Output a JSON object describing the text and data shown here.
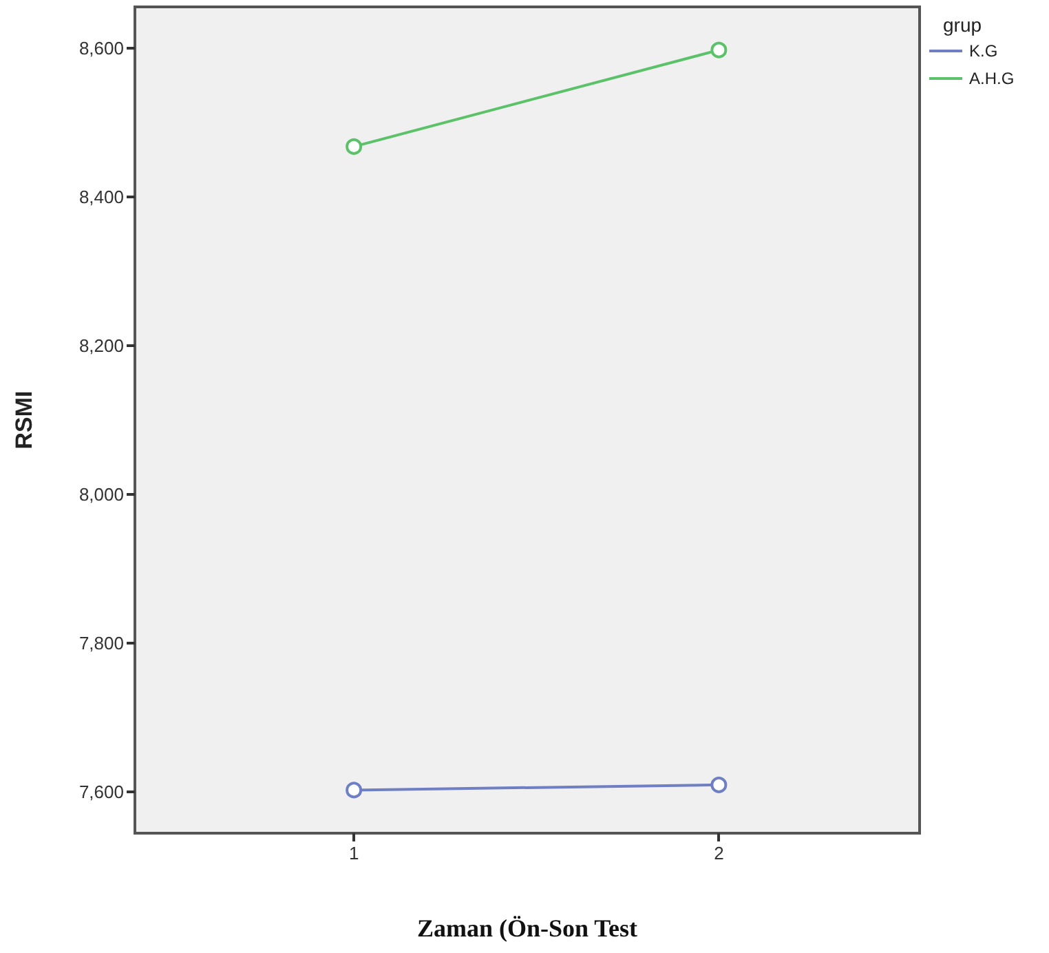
{
  "chart_data": {
    "type": "line",
    "xlabel": "Zaman (Ön-Son Test",
    "ylabel": "RSMI",
    "legend_title": "grup",
    "x": [
      1,
      2
    ],
    "series": [
      {
        "name": "K.G",
        "color": "#6e7fc4",
        "values": [
          7602,
          7609
        ]
      },
      {
        "name": "A.H.G",
        "color": "#5bc26a",
        "values": [
          8468,
          8598
        ]
      }
    ],
    "xlim": [
      0.4,
      2.55
    ],
    "xticks": [
      1,
      2
    ],
    "ylim": [
      7544,
      8656
    ],
    "yticks": [
      {
        "value": 7600,
        "label": "7,600"
      },
      {
        "value": 7800,
        "label": "7,800"
      },
      {
        "value": 8000,
        "label": "8,000"
      },
      {
        "value": 8200,
        "label": "8,200"
      },
      {
        "value": 8400,
        "label": "8,400"
      },
      {
        "value": 8600,
        "label": "8,600"
      }
    ],
    "grid": false,
    "legend": "top right",
    "marker": "circle",
    "line_style": "solid"
  }
}
